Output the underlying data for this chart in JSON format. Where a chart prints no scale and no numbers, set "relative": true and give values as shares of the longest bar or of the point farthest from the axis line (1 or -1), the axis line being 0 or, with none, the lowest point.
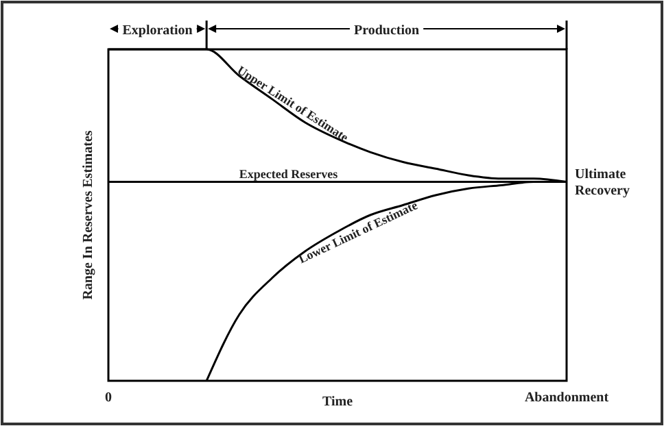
{
  "chart_data": {
    "type": "line",
    "relative": true,
    "xlabel": "Time",
    "ylabel": "Range In Reserves Estimates",
    "categories": [
      "0",
      null,
      null,
      null,
      null,
      null,
      null,
      null,
      null,
      null,
      null,
      null,
      null,
      null,
      "Abandonment"
    ],
    "grid": false,
    "legend": false,
    "marker": "none",
    "line_style": "solid",
    "annotations": [
      "Exploration",
      "Production",
      {
        "text": "Ultimate Recovery",
        "x": "Abandonment",
        "y": 0.603
      }
    ],
    "series": [
      {
        "name": "Upper Limit of Estimate",
        "color": "#000000",
        "values": [
          1,
          1,
          1,
          1,
          0.92,
          0.85,
          0.78,
          0.73,
          0.69,
          0.66,
          0.64,
          0.62,
          0.61,
          0.61,
          0.6
        ]
      },
      {
        "name": "Expected Reserves",
        "color": "#000000",
        "values": [
          0.6,
          0.6,
          0.6,
          0.6,
          0.6,
          0.6,
          0.6,
          0.6,
          0.6,
          0.6,
          0.6,
          0.6,
          0.6,
          0.6,
          0.6
        ]
      },
      {
        "name": "Lower Limit of Estimate",
        "color": "#000000",
        "values": [
          null,
          null,
          null,
          0,
          0.2,
          0.31,
          0.39,
          0.45,
          0.5,
          0.53,
          0.56,
          0.58,
          0.59,
          0.6,
          0.6
        ]
      }
    ]
  }
}
